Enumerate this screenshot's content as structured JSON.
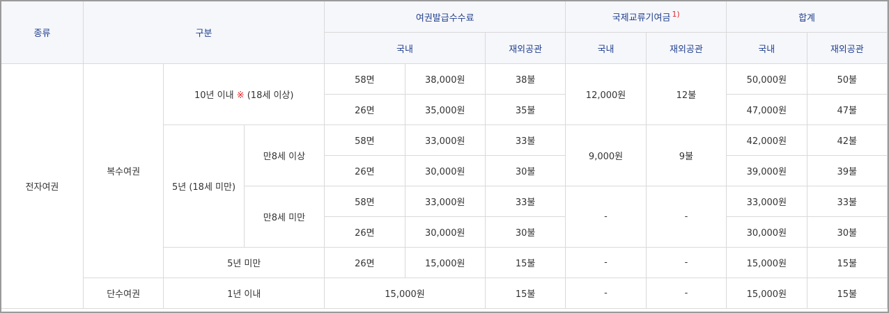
{
  "header": {
    "type": "종류",
    "category": "구분",
    "issue_fee": "여권발급수수료",
    "exchange_fund": "국제교류기여금",
    "exchange_fund_note": "1)",
    "total": "합계",
    "domestic": "국내",
    "overseas": "재외공관"
  },
  "body": {
    "e_passport": "전자여권",
    "multiple": "복수여권",
    "single": "단수여권",
    "ten_years": "10년 이내",
    "ten_years_mark": "※",
    "ten_years_age": "(18세 이상)",
    "five_years_under18": "5년 (18세 미만)",
    "age8_over": "만8세 이상",
    "age8_under": "만8세 미만",
    "under5": "5년 미만",
    "within1": "1년 이내",
    "dash": "-"
  },
  "rows": [
    {
      "pages": "58면",
      "dom": "38,000원",
      "ovs": "38불",
      "tot_dom": "50,000원",
      "tot_ovs": "50불"
    },
    {
      "pages": "26면",
      "dom": "35,000원",
      "ovs": "35불",
      "tot_dom": "47,000원",
      "tot_ovs": "47불"
    },
    {
      "pages": "58면",
      "dom": "33,000원",
      "ovs": "33불",
      "tot_dom": "42,000원",
      "tot_ovs": "42불"
    },
    {
      "pages": "26면",
      "dom": "30,000원",
      "ovs": "30불",
      "tot_dom": "39,000원",
      "tot_ovs": "39불"
    },
    {
      "pages": "58면",
      "dom": "33,000원",
      "ovs": "33불",
      "tot_dom": "33,000원",
      "tot_ovs": "33불"
    },
    {
      "pages": "26면",
      "dom": "30,000원",
      "ovs": "30불",
      "tot_dom": "30,000원",
      "tot_ovs": "30불"
    },
    {
      "pages": "26면",
      "dom": "15,000원",
      "ovs": "15불",
      "tot_dom": "15,000원",
      "tot_ovs": "15불"
    },
    {
      "dom": "15,000원",
      "ovs": "15불",
      "tot_dom": "15,000원",
      "tot_ovs": "15불"
    }
  ],
  "fund": {
    "ten_dom": "12,000원",
    "ten_ovs": "12불",
    "five_dom": "9,000원",
    "five_ovs": "9불"
  },
  "colors": {
    "header_text": "#1f3f8c",
    "header_bg": "#f6f7fb",
    "accent_red": "#e0292a"
  }
}
